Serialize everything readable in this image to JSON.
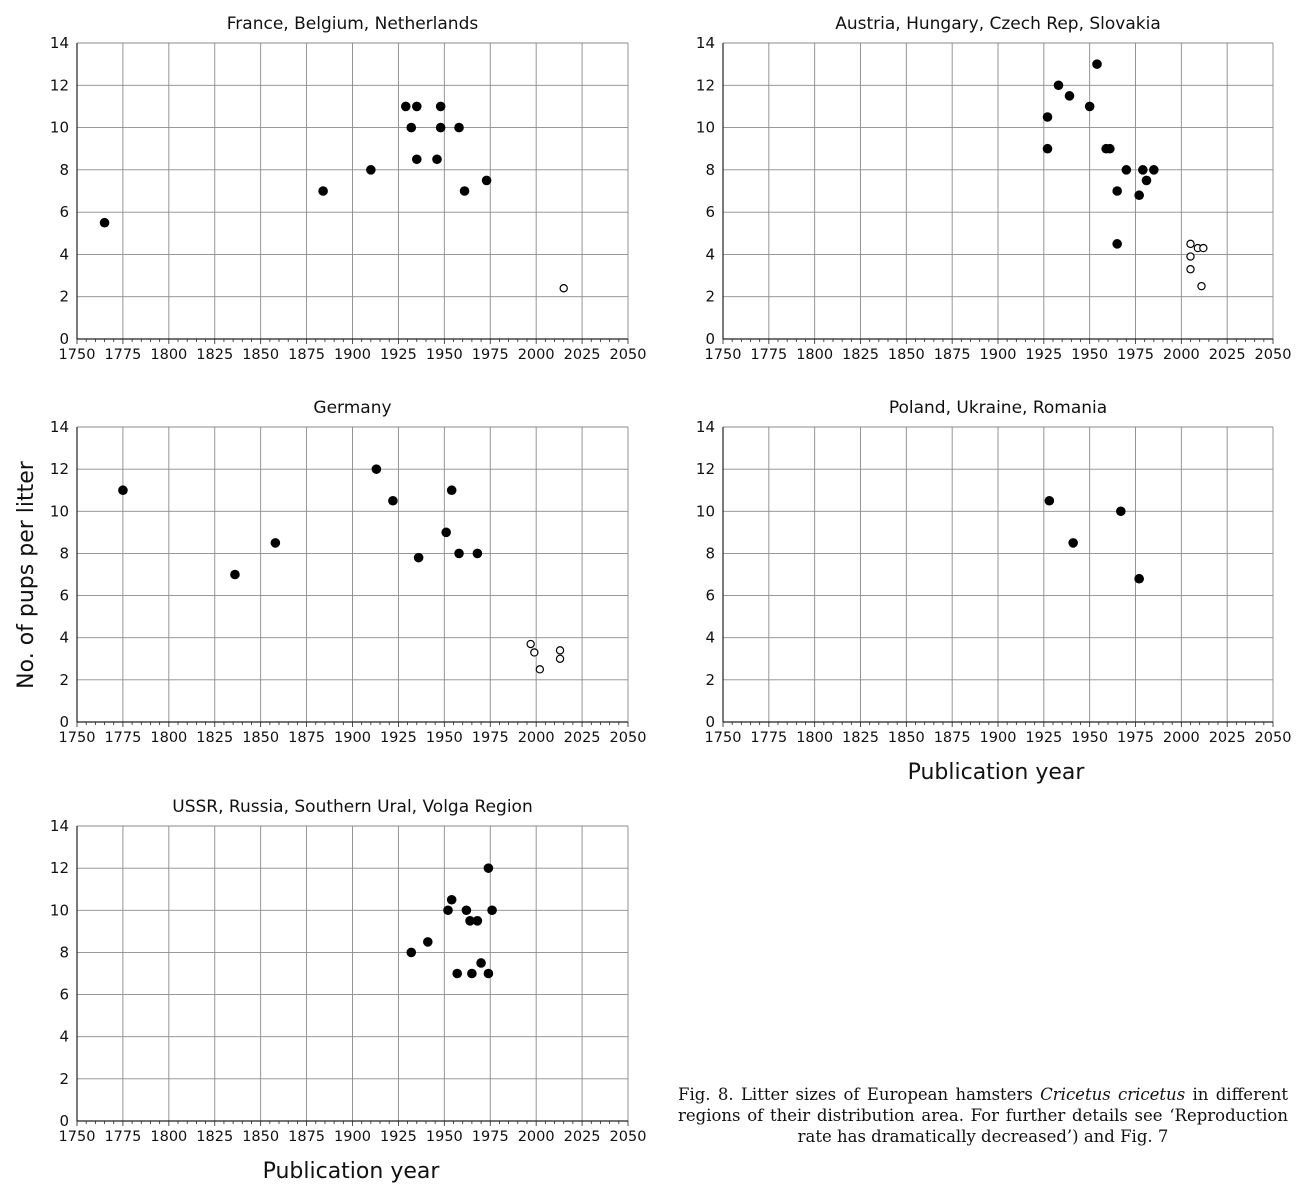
{
  "figure": {
    "caption": {
      "prefix": "Fig. 8. Litter sizes of European hamsters ",
      "species": "Cricetus cricetus",
      "suffix": " in different regions of their distribution area. For further details see ‘Reproduction rate has dramatically decreased’) and Fig. 7"
    },
    "ylabel": "No. of pups per litter",
    "xlabel": "Publication year"
  },
  "chart_data": [
    {
      "type": "scatter",
      "title": "France, Belgium, Netherlands",
      "xlim": [
        1750,
        2050
      ],
      "ylim": [
        0,
        14
      ],
      "xticks": [
        1750,
        1775,
        1800,
        1825,
        1850,
        1875,
        1900,
        1925,
        1950,
        1975,
        2000,
        2025,
        2050
      ],
      "yticks": [
        0,
        2,
        4,
        6,
        8,
        10,
        12,
        14
      ],
      "grid": true,
      "series": [
        {
          "marker": "filled",
          "points": [
            [
              1765,
              5.5
            ],
            [
              1884,
              7
            ],
            [
              1910,
              8
            ],
            [
              1929,
              11
            ],
            [
              1932,
              10
            ],
            [
              1935,
              8.5
            ],
            [
              1935,
              11
            ],
            [
              1946,
              8.5
            ],
            [
              1948,
              11
            ],
            [
              1948,
              10
            ],
            [
              1958,
              10
            ],
            [
              1961,
              7
            ],
            [
              1973,
              7.5
            ]
          ]
        },
        {
          "marker": "open",
          "points": [
            [
              2015,
              2.4
            ]
          ]
        }
      ]
    },
    {
      "type": "scatter",
      "title": "Austria, Hungary, Czech Rep, Slovakia",
      "xlim": [
        1750,
        2050
      ],
      "ylim": [
        0,
        14
      ],
      "xticks": [
        1750,
        1775,
        1800,
        1825,
        1850,
        1875,
        1900,
        1925,
        1950,
        1975,
        2000,
        2025,
        2050
      ],
      "yticks": [
        0,
        2,
        4,
        6,
        8,
        10,
        12,
        14
      ],
      "grid": true,
      "series": [
        {
          "marker": "filled",
          "points": [
            [
              1927,
              9
            ],
            [
              1927,
              10.5
            ],
            [
              1933,
              12
            ],
            [
              1939,
              11.5
            ],
            [
              1950,
              11
            ],
            [
              1954,
              13
            ],
            [
              1959,
              9
            ],
            [
              1961,
              9
            ],
            [
              1965,
              4.5
            ],
            [
              1965,
              7
            ],
            [
              1970,
              8
            ],
            [
              1977,
              6.8
            ],
            [
              1979,
              8
            ],
            [
              1981,
              7.5
            ],
            [
              1985,
              8
            ]
          ]
        },
        {
          "marker": "open",
          "points": [
            [
              2005,
              4.5
            ],
            [
              2005,
              3.9
            ],
            [
              2005,
              3.3
            ],
            [
              2009,
              4.3
            ],
            [
              2012,
              4.3
            ],
            [
              2011,
              2.5
            ]
          ]
        }
      ]
    },
    {
      "type": "scatter",
      "title": "Germany",
      "xlim": [
        1750,
        2050
      ],
      "ylim": [
        0,
        14
      ],
      "xticks": [
        1750,
        1775,
        1800,
        1825,
        1850,
        1875,
        1900,
        1925,
        1950,
        1975,
        2000,
        2025,
        2050
      ],
      "yticks": [
        0,
        2,
        4,
        6,
        8,
        10,
        12,
        14
      ],
      "grid": true,
      "series": [
        {
          "marker": "filled",
          "points": [
            [
              1775,
              11
            ],
            [
              1836,
              7
            ],
            [
              1858,
              8.5
            ],
            [
              1913,
              12
            ],
            [
              1922,
              10.5
            ],
            [
              1936,
              7.8
            ],
            [
              1951,
              9
            ],
            [
              1954,
              11
            ],
            [
              1958,
              8
            ],
            [
              1968,
              8
            ]
          ]
        },
        {
          "marker": "open",
          "points": [
            [
              1997,
              3.7
            ],
            [
              1999,
              3.3
            ],
            [
              2002,
              2.5
            ],
            [
              2013,
              3.4
            ],
            [
              2013,
              3
            ]
          ]
        }
      ]
    },
    {
      "type": "scatter",
      "title": "Poland, Ukraine, Romania",
      "xlim": [
        1750,
        2050
      ],
      "ylim": [
        0,
        14
      ],
      "xticks": [
        1750,
        1775,
        1800,
        1825,
        1850,
        1875,
        1900,
        1925,
        1950,
        1975,
        2000,
        2025,
        2050
      ],
      "yticks": [
        0,
        2,
        4,
        6,
        8,
        10,
        12,
        14
      ],
      "grid": true,
      "series": [
        {
          "marker": "filled",
          "points": [
            [
              1928,
              10.5
            ],
            [
              1941,
              8.5
            ],
            [
              1967,
              10
            ],
            [
              1977,
              6.8
            ]
          ]
        }
      ]
    },
    {
      "type": "scatter",
      "title": "USSR, Russia, Southern Ural, Volga Region",
      "xlim": [
        1750,
        2050
      ],
      "ylim": [
        0,
        14
      ],
      "xticks": [
        1750,
        1775,
        1800,
        1825,
        1850,
        1875,
        1900,
        1925,
        1950,
        1975,
        2000,
        2025,
        2050
      ],
      "yticks": [
        0,
        2,
        4,
        6,
        8,
        10,
        12,
        14
      ],
      "grid": true,
      "series": [
        {
          "marker": "filled",
          "points": [
            [
              1932,
              8
            ],
            [
              1941,
              8.5
            ],
            [
              1952,
              10
            ],
            [
              1954,
              10.5
            ],
            [
              1957,
              7
            ],
            [
              1962,
              10
            ],
            [
              1964,
              9.5
            ],
            [
              1965,
              7
            ],
            [
              1968,
              9.5
            ],
            [
              1970,
              7.5
            ],
            [
              1974,
              7
            ],
            [
              1974,
              12
            ],
            [
              1976,
              10
            ]
          ]
        }
      ]
    }
  ]
}
